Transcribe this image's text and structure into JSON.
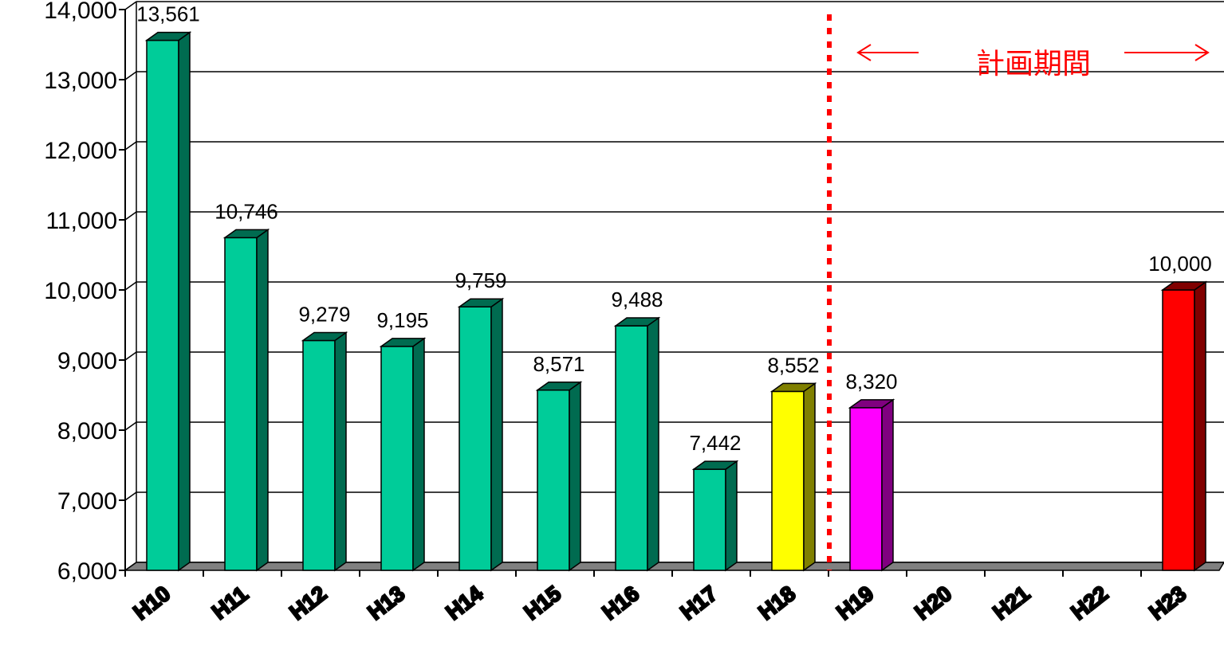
{
  "chart_data": {
    "type": "bar",
    "categories": [
      "H10",
      "H11",
      "H12",
      "H13",
      "H14",
      "H15",
      "H16",
      "H17",
      "H18",
      "H19",
      "H20",
      "H21",
      "H22",
      "H23"
    ],
    "values": [
      13561,
      10746,
      9279,
      9195,
      9759,
      8571,
      9488,
      7442,
      8552,
      8320,
      null,
      null,
      null,
      10000
    ],
    "value_labels": [
      "13,561",
      "10,746",
      "9,279",
      "9,195",
      "9,759",
      "8,571",
      "9,488",
      "7,442",
      "8,552",
      "8,320",
      "",
      "",
      "",
      "10,000"
    ],
    "ylim": [
      6000,
      14000
    ],
    "yticks": [
      6000,
      7000,
      8000,
      9000,
      10000,
      11000,
      12000,
      13000,
      14000
    ],
    "ytick_labels": [
      "6,000",
      "7,000",
      "8,000",
      "9,000",
      "10,000",
      "11,000",
      "12,000",
      "13,000",
      "14,000"
    ],
    "grid": true,
    "colors": {
      "default_front": "#00cc99",
      "default_side": "#006b50",
      "H18_front": "#ffff00",
      "H18_side": "#808000",
      "H19_front": "#ff00ff",
      "H19_side": "#800080",
      "H23_front": "#ff0000",
      "H23_side": "#800000"
    },
    "annotation": {
      "text": "計画期間",
      "color": "#ff0000",
      "divider_style": "dotted-red-vertical",
      "divider_after_category": "H18"
    }
  }
}
